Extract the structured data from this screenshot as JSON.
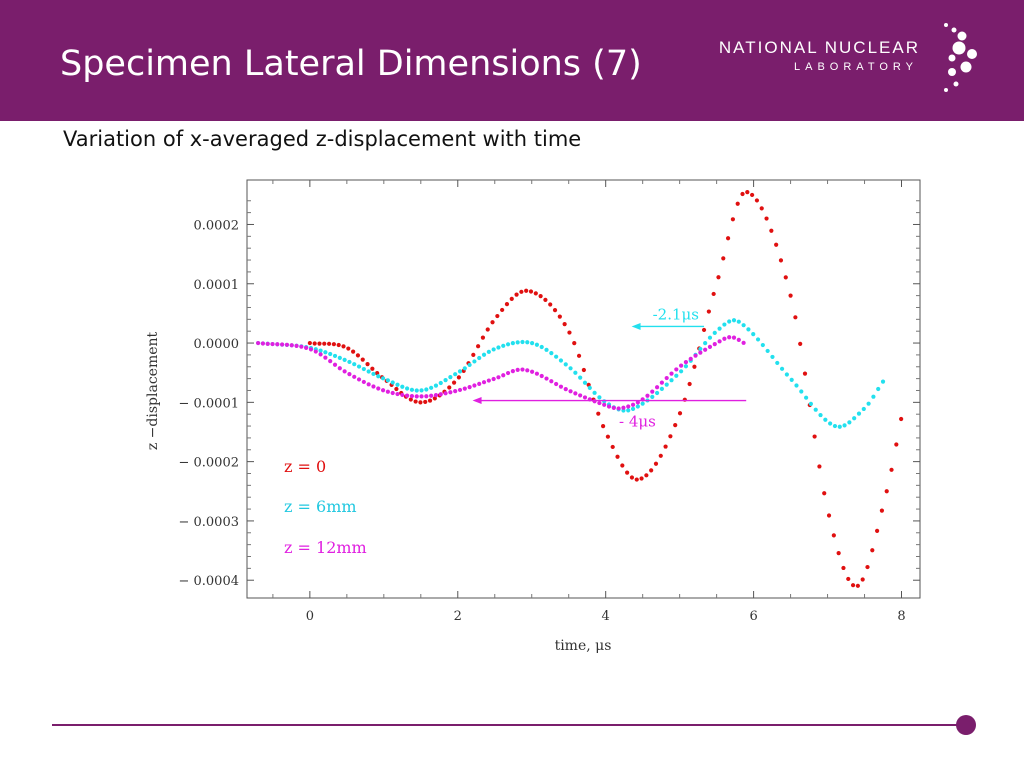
{
  "slide": {
    "title": "Specimen Lateral Dimensions (7)",
    "subtitle": "Variation of x-averaged z-displacement with time"
  },
  "logo": {
    "line1": "NATIONAL NUCLEAR",
    "line2": "LABORATORY",
    "icon": "dot-cluster-icon",
    "color": "#ffffff"
  },
  "theme": {
    "header_bg": "#7a1e6c",
    "accent": "#7a1e6c"
  },
  "chart_data": {
    "type": "scatter",
    "title": "",
    "xlabel": "time,  μs",
    "ylabel": "z −displacement",
    "xlim": [
      -0.85,
      8.25
    ],
    "ylim": [
      -0.00043,
      0.000275
    ],
    "x_ticks": [
      0,
      2,
      4,
      6,
      8
    ],
    "x_tick_labels": [
      "0",
      "2",
      "4",
      "6",
      "8"
    ],
    "y_ticks": [
      0.0002,
      0.0001,
      0.0,
      -0.0001,
      -0.0002,
      -0.0003,
      -0.0004
    ],
    "y_tick_labels": [
      "0.0002",
      "0.0001",
      "0.0000",
      "− 0.0001",
      "− 0.0002",
      "− 0.0003",
      "− 0.0004"
    ],
    "grid": false,
    "legend_position": "lower-left inside",
    "series": [
      {
        "name": "z = 0",
        "color": "#e01010",
        "x_range": [
          0.0,
          8.0
        ],
        "marker_spacing": 0.065,
        "key_points": [
          [
            0.0,
            0.0
          ],
          [
            0.5,
            -8e-06
          ],
          [
            1.0,
            -6e-05
          ],
          [
            1.5,
            -0.0001
          ],
          [
            2.0,
            -6e-05
          ],
          [
            2.5,
            4e-05
          ],
          [
            2.95,
            8.8e-05
          ],
          [
            3.5,
            2e-05
          ],
          [
            4.0,
            -0.00015
          ],
          [
            4.45,
            -0.00023
          ],
          [
            5.0,
            -0.00012
          ],
          [
            5.5,
            0.0001
          ],
          [
            5.9,
            0.000255
          ],
          [
            6.5,
            8e-05
          ],
          [
            7.0,
            -0.00028
          ],
          [
            7.4,
            -0.00041
          ],
          [
            7.8,
            -0.00025
          ],
          [
            8.0,
            -0.000125
          ]
        ]
      },
      {
        "name": "z = 6mm",
        "color": "#22e0ee",
        "x_range": [
          -0.7,
          7.75
        ],
        "marker_spacing": 0.065,
        "key_points": [
          [
            -0.7,
            0.0
          ],
          [
            0.0,
            -8e-06
          ],
          [
            0.5,
            -3e-05
          ],
          [
            1.0,
            -6e-05
          ],
          [
            1.5,
            -8e-05
          ],
          [
            2.0,
            -5e-05
          ],
          [
            2.5,
            -1e-05
          ],
          [
            3.0,
            0.0
          ],
          [
            3.5,
            -4e-05
          ],
          [
            4.0,
            -0.0001
          ],
          [
            4.35,
            -0.000112
          ],
          [
            5.0,
            -5e-05
          ],
          [
            5.5,
            2e-05
          ],
          [
            5.8,
            3.6e-05
          ],
          [
            6.5,
            -6e-05
          ],
          [
            7.1,
            -0.00014
          ],
          [
            7.5,
            -0.00011
          ],
          [
            7.75,
            -6.5e-05
          ]
        ]
      },
      {
        "name": "z = 12mm",
        "color": "#e020e0",
        "x_range": [
          -0.7,
          5.9
        ],
        "marker_spacing": 0.065,
        "key_points": [
          [
            -0.7,
            0.0
          ],
          [
            0.0,
            -1e-05
          ],
          [
            0.5,
            -5e-05
          ],
          [
            1.0,
            -8e-05
          ],
          [
            1.5,
            -9e-05
          ],
          [
            2.0,
            -8e-05
          ],
          [
            2.5,
            -6e-05
          ],
          [
            2.9,
            -4.5e-05
          ],
          [
            3.5,
            -8e-05
          ],
          [
            4.0,
            -0.000105
          ],
          [
            4.2,
            -0.00011
          ],
          [
            4.5,
            -9.5e-05
          ],
          [
            5.0,
            -4e-05
          ],
          [
            5.5,
            0.0
          ],
          [
            5.7,
            1e-05
          ],
          [
            5.9,
            -2e-06
          ]
        ]
      }
    ],
    "annotations": [
      {
        "text": "-2.1μs",
        "color": "#22e0ee",
        "arrow": {
          "from": [
            5.33,
            2.8e-05
          ],
          "to": [
            4.35,
            2.8e-05
          ]
        }
      },
      {
        "text": "- 4μs",
        "color": "#e020e0",
        "arrow": {
          "from": [
            5.9,
            -9.7e-05
          ],
          "to": [
            2.2,
            -9.7e-05
          ]
        }
      }
    ]
  }
}
